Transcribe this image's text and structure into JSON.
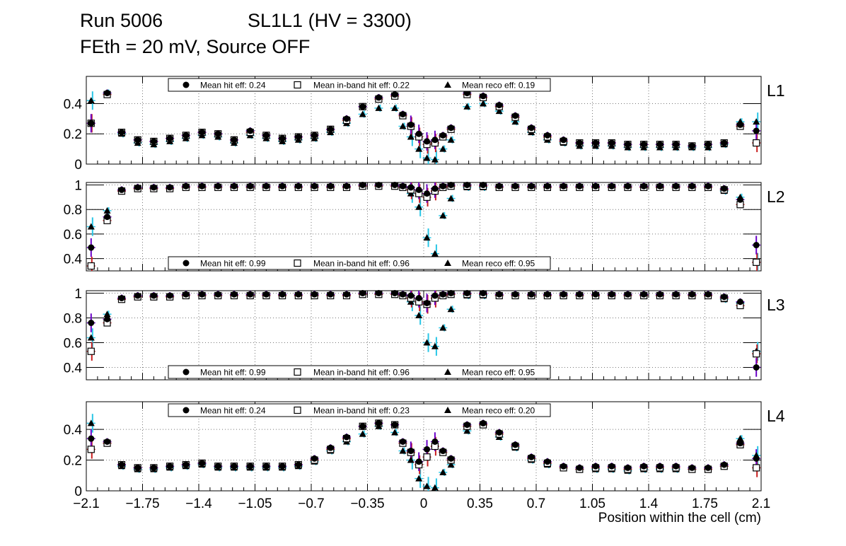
{
  "header": {
    "run_label": "Run 5006",
    "chamber_label": "SL1L1 (HV = 3300)",
    "subtitle": "FEth = 20 mV, Source OFF"
  },
  "chart_data": {
    "type": "scatter",
    "xlabel": "Position within the cell (cm)",
    "xlim": [
      -2.1,
      2.1
    ],
    "xticks": [
      -2.1,
      -1.75,
      -1.4,
      -1.05,
      -0.7,
      -0.35,
      0,
      0.35,
      0.7,
      1.05,
      1.4,
      1.75,
      2.1
    ],
    "xtick_labels": [
      "−2.1",
      "−1.75",
      "−1.4",
      "−1.05",
      "−0.7",
      "−0.35",
      "0",
      "0.35",
      "0.7",
      "1.05",
      "1.4",
      "1.75",
      "2.1"
    ],
    "colors": {
      "hit_err": "#6a00c8",
      "inband_err": "#c81e1e",
      "reco_err": "#29c6e6",
      "grid": "#777777",
      "marker": "#000000"
    },
    "legend_names": [
      "Mean hit  eff:",
      "Mean in-band hit eff:",
      "Mean reco eff:"
    ],
    "panels": [
      {
        "layer": "L1",
        "ylim": [
          0,
          0.58
        ],
        "yticks": [
          0,
          0.2,
          0.4
        ],
        "ytick_labels": [
          "0",
          "0.2",
          "0.4"
        ],
        "legend_position": "top",
        "legend_values": [
          "0.24",
          "0.22",
          "0.19"
        ],
        "x": [
          -2.07,
          -1.97,
          -1.88,
          -1.78,
          -1.68,
          -1.58,
          -1.48,
          -1.38,
          -1.28,
          -1.18,
          -1.08,
          -0.98,
          -0.88,
          -0.78,
          -0.68,
          -0.58,
          -0.48,
          -0.38,
          -0.28,
          -0.18,
          -0.13,
          -0.08,
          -0.03,
          0.02,
          0.07,
          0.12,
          0.17,
          0.27,
          0.37,
          0.47,
          0.57,
          0.67,
          0.77,
          0.87,
          0.97,
          1.07,
          1.17,
          1.27,
          1.37,
          1.47,
          1.57,
          1.67,
          1.77,
          1.87,
          1.97,
          2.07
        ],
        "hit": [
          0.27,
          0.47,
          0.21,
          0.16,
          0.15,
          0.17,
          0.19,
          0.21,
          0.2,
          0.16,
          0.22,
          0.19,
          0.17,
          0.18,
          0.19,
          0.23,
          0.3,
          0.38,
          0.44,
          0.46,
          0.33,
          0.26,
          0.2,
          0.15,
          0.16,
          0.19,
          0.24,
          0.47,
          0.45,
          0.39,
          0.32,
          0.24,
          0.19,
          0.16,
          0.14,
          0.14,
          0.14,
          0.13,
          0.13,
          0.13,
          0.13,
          0.12,
          0.13,
          0.14,
          0.26,
          0.22
        ],
        "inband": [
          0.27,
          0.46,
          0.21,
          0.16,
          0.15,
          0.17,
          0.19,
          0.21,
          0.2,
          0.16,
          0.21,
          0.19,
          0.17,
          0.18,
          0.19,
          0.23,
          0.29,
          0.38,
          0.43,
          0.45,
          0.32,
          0.25,
          0.18,
          0.13,
          0.14,
          0.18,
          0.23,
          0.46,
          0.44,
          0.38,
          0.31,
          0.23,
          0.18,
          0.15,
          0.14,
          0.14,
          0.14,
          0.13,
          0.13,
          0.13,
          0.13,
          0.12,
          0.13,
          0.14,
          0.25,
          0.14
        ],
        "reco": [
          0.42,
          0.47,
          0.2,
          0.14,
          0.13,
          0.15,
          0.17,
          0.19,
          0.18,
          0.14,
          0.19,
          0.17,
          0.15,
          0.16,
          0.17,
          0.21,
          0.27,
          0.33,
          0.37,
          0.37,
          0.25,
          0.18,
          0.1,
          0.04,
          0.03,
          0.1,
          0.16,
          0.38,
          0.4,
          0.35,
          0.28,
          0.21,
          0.16,
          0.14,
          0.12,
          0.12,
          0.12,
          0.11,
          0.11,
          0.11,
          0.11,
          0.11,
          0.11,
          0.13,
          0.28,
          0.28
        ]
      },
      {
        "layer": "L2",
        "ylim": [
          0.3,
          1.02
        ],
        "yticks": [
          0.4,
          0.6,
          0.8,
          1.0
        ],
        "ytick_labels": [
          "0.4",
          "0.6",
          "0.8",
          "1"
        ],
        "legend_position": "bottom",
        "legend_values": [
          "0.99",
          "0.96",
          "0.95"
        ],
        "x": [
          -2.07,
          -1.97,
          -1.88,
          -1.78,
          -1.68,
          -1.58,
          -1.48,
          -1.38,
          -1.28,
          -1.18,
          -1.08,
          -0.98,
          -0.88,
          -0.78,
          -0.68,
          -0.58,
          -0.48,
          -0.38,
          -0.28,
          -0.18,
          -0.13,
          -0.08,
          -0.03,
          0.02,
          0.07,
          0.12,
          0.17,
          0.27,
          0.37,
          0.47,
          0.57,
          0.67,
          0.77,
          0.87,
          0.97,
          1.07,
          1.17,
          1.27,
          1.37,
          1.47,
          1.57,
          1.67,
          1.77,
          1.87,
          1.97,
          2.07
        ],
        "hit": [
          0.49,
          0.74,
          0.96,
          0.98,
          0.98,
          0.98,
          0.99,
          0.99,
          0.99,
          0.99,
          0.99,
          0.99,
          0.99,
          0.99,
          0.99,
          0.99,
          0.99,
          1.0,
          1.0,
          1.0,
          0.99,
          0.98,
          0.96,
          0.93,
          0.97,
          0.99,
          1.0,
          1.0,
          1.0,
          0.99,
          0.99,
          0.99,
          0.99,
          0.99,
          0.99,
          0.99,
          0.99,
          0.99,
          0.99,
          0.99,
          0.99,
          0.99,
          0.99,
          0.97,
          0.88,
          0.51
        ],
        "inband": [
          0.34,
          0.71,
          0.95,
          0.97,
          0.97,
          0.97,
          0.98,
          0.98,
          0.98,
          0.98,
          0.98,
          0.98,
          0.98,
          0.98,
          0.98,
          0.98,
          0.98,
          0.99,
          0.99,
          0.99,
          0.98,
          0.96,
          0.93,
          0.9,
          0.95,
          0.98,
          0.99,
          0.99,
          0.99,
          0.98,
          0.98,
          0.98,
          0.98,
          0.98,
          0.98,
          0.98,
          0.98,
          0.98,
          0.98,
          0.98,
          0.98,
          0.98,
          0.98,
          0.96,
          0.84,
          0.37
        ],
        "reco": [
          0.66,
          0.79,
          0.95,
          0.97,
          0.97,
          0.97,
          0.98,
          0.98,
          0.98,
          0.98,
          0.98,
          0.98,
          0.98,
          0.98,
          0.98,
          0.98,
          0.98,
          0.99,
          0.99,
          0.99,
          0.98,
          0.93,
          0.82,
          0.57,
          0.44,
          0.75,
          0.89,
          0.98,
          0.98,
          0.98,
          0.98,
          0.98,
          0.98,
          0.98,
          0.98,
          0.98,
          0.98,
          0.98,
          0.98,
          0.98,
          0.98,
          0.98,
          0.98,
          0.95,
          0.9,
          0.37
        ]
      },
      {
        "layer": "L3",
        "ylim": [
          0.3,
          1.02
        ],
        "yticks": [
          0.4,
          0.6,
          0.8,
          1.0
        ],
        "ytick_labels": [
          "0.4",
          "0.6",
          "0.8",
          "1"
        ],
        "legend_position": "bottom",
        "legend_values": [
          "0.99",
          "0.96",
          "0.95"
        ],
        "x": [
          -2.07,
          -1.97,
          -1.88,
          -1.78,
          -1.68,
          -1.58,
          -1.48,
          -1.38,
          -1.28,
          -1.18,
          -1.08,
          -0.98,
          -0.88,
          -0.78,
          -0.68,
          -0.58,
          -0.48,
          -0.38,
          -0.28,
          -0.18,
          -0.13,
          -0.08,
          -0.03,
          0.02,
          0.07,
          0.12,
          0.17,
          0.27,
          0.37,
          0.47,
          0.57,
          0.67,
          0.77,
          0.87,
          0.97,
          1.07,
          1.17,
          1.27,
          1.37,
          1.47,
          1.57,
          1.67,
          1.77,
          1.87,
          1.97,
          2.07
        ],
        "hit": [
          0.76,
          0.79,
          0.96,
          0.98,
          0.98,
          0.98,
          0.99,
          0.99,
          0.99,
          0.99,
          0.99,
          0.99,
          0.99,
          0.99,
          0.99,
          0.99,
          0.99,
          1.0,
          1.0,
          1.0,
          0.99,
          0.98,
          0.96,
          0.92,
          0.98,
          0.99,
          1.0,
          1.0,
          1.0,
          0.99,
          0.99,
          0.99,
          0.99,
          0.99,
          0.99,
          0.99,
          0.99,
          0.99,
          0.99,
          0.99,
          0.99,
          0.99,
          0.99,
          0.97,
          0.93,
          0.4
        ],
        "inband": [
          0.53,
          0.76,
          0.95,
          0.97,
          0.97,
          0.97,
          0.98,
          0.98,
          0.98,
          0.98,
          0.98,
          0.98,
          0.98,
          0.98,
          0.98,
          0.98,
          0.98,
          0.99,
          0.99,
          0.99,
          0.98,
          0.96,
          0.93,
          0.91,
          0.96,
          0.98,
          0.99,
          0.99,
          0.99,
          0.98,
          0.98,
          0.98,
          0.98,
          0.98,
          0.98,
          0.98,
          0.98,
          0.98,
          0.98,
          0.98,
          0.98,
          0.98,
          0.98,
          0.96,
          0.9,
          0.51
        ],
        "reco": [
          0.64,
          0.83,
          0.95,
          0.97,
          0.97,
          0.97,
          0.98,
          0.98,
          0.98,
          0.98,
          0.98,
          0.98,
          0.98,
          0.98,
          0.98,
          0.98,
          0.98,
          0.99,
          0.99,
          0.99,
          0.98,
          0.93,
          0.82,
          0.6,
          0.57,
          0.72,
          0.87,
          0.98,
          0.98,
          0.98,
          0.98,
          0.98,
          0.98,
          0.98,
          0.98,
          0.98,
          0.98,
          0.98,
          0.98,
          0.98,
          0.98,
          0.98,
          0.98,
          0.95,
          0.92,
          0.53
        ]
      },
      {
        "layer": "L4",
        "ylim": [
          0,
          0.58
        ],
        "yticks": [
          0,
          0.2,
          0.4
        ],
        "ytick_labels": [
          "0",
          "0.2",
          "0.4"
        ],
        "legend_position": "top",
        "legend_values": [
          "0.24",
          "0.23",
          "0.20"
        ],
        "x": [
          -2.07,
          -1.97,
          -1.88,
          -1.78,
          -1.68,
          -1.58,
          -1.48,
          -1.38,
          -1.28,
          -1.18,
          -1.08,
          -0.98,
          -0.88,
          -0.78,
          -0.68,
          -0.58,
          -0.48,
          -0.38,
          -0.28,
          -0.18,
          -0.13,
          -0.08,
          -0.03,
          0.02,
          0.07,
          0.12,
          0.17,
          0.27,
          0.37,
          0.47,
          0.57,
          0.67,
          0.77,
          0.87,
          0.97,
          1.07,
          1.17,
          1.27,
          1.37,
          1.47,
          1.57,
          1.67,
          1.77,
          1.87,
          1.97,
          2.07
        ],
        "hit": [
          0.34,
          0.32,
          0.17,
          0.15,
          0.15,
          0.16,
          0.17,
          0.18,
          0.16,
          0.16,
          0.16,
          0.16,
          0.16,
          0.17,
          0.21,
          0.28,
          0.35,
          0.42,
          0.44,
          0.43,
          0.32,
          0.26,
          0.19,
          0.27,
          0.32,
          0.26,
          0.21,
          0.43,
          0.44,
          0.38,
          0.3,
          0.22,
          0.19,
          0.16,
          0.15,
          0.16,
          0.16,
          0.15,
          0.16,
          0.16,
          0.16,
          0.15,
          0.15,
          0.17,
          0.31,
          0.21
        ],
        "inband": [
          0.27,
          0.31,
          0.17,
          0.15,
          0.15,
          0.16,
          0.17,
          0.18,
          0.16,
          0.16,
          0.16,
          0.16,
          0.16,
          0.17,
          0.2,
          0.27,
          0.34,
          0.42,
          0.44,
          0.43,
          0.31,
          0.25,
          0.17,
          0.22,
          0.29,
          0.25,
          0.2,
          0.42,
          0.43,
          0.37,
          0.29,
          0.21,
          0.18,
          0.15,
          0.14,
          0.15,
          0.15,
          0.14,
          0.15,
          0.15,
          0.15,
          0.14,
          0.14,
          0.16,
          0.3,
          0.15
        ],
        "reco": [
          0.44,
          0.31,
          0.16,
          0.14,
          0.14,
          0.15,
          0.16,
          0.17,
          0.15,
          0.15,
          0.15,
          0.15,
          0.15,
          0.16,
          0.19,
          0.26,
          0.32,
          0.37,
          0.42,
          0.38,
          0.26,
          0.2,
          0.08,
          0.03,
          0.02,
          0.12,
          0.17,
          0.39,
          0.43,
          0.35,
          0.28,
          0.2,
          0.17,
          0.15,
          0.14,
          0.14,
          0.14,
          0.13,
          0.14,
          0.14,
          0.14,
          0.14,
          0.14,
          0.16,
          0.34,
          0.23
        ]
      }
    ]
  }
}
